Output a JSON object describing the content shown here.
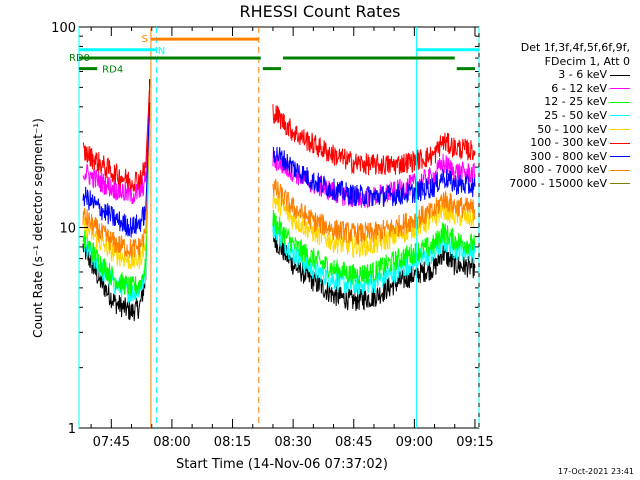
{
  "chart_data": {
    "type": "line",
    "title": "RHESSI Count Rates",
    "xlabel": "Start Time (14-Nov-06 07:37:02)",
    "ylabel": "Count Rate (s⁻¹ detector segment⁻¹)",
    "y_scale": "log",
    "ylim": [
      1,
      100
    ],
    "y_ticks": [
      {
        "value": 1,
        "label": "1"
      },
      {
        "value": 10,
        "label": "10"
      },
      {
        "value": 100,
        "label": "100"
      }
    ],
    "x_range_minutes": [
      37.0,
      136.0
    ],
    "x_ticks": [
      {
        "minute": 45,
        "label": "07:45"
      },
      {
        "minute": 60,
        "label": "08:00"
      },
      {
        "minute": 75,
        "label": "08:15"
      },
      {
        "minute": 90,
        "label": "08:30"
      },
      {
        "minute": 105,
        "label": "08:45"
      },
      {
        "minute": 120,
        "label": "09:00"
      },
      {
        "minute": 135,
        "label": "09:15"
      }
    ],
    "legend_header": [
      "Det 1f,3f,4f,5f,6f,9f,",
      "FDecim 1, Att 0"
    ],
    "series": [
      {
        "name": "3 - 6 keV",
        "color": "#000000",
        "points": [
          [
            38,
            8
          ],
          [
            42,
            5.5
          ],
          [
            46,
            4.2
          ],
          [
            50,
            3.8
          ],
          [
            52,
            4
          ],
          [
            53.5,
            5.5
          ],
          [
            54.5,
            55
          ],
          [
            55,
            0
          ],
          [
            84,
            0
          ],
          [
            85,
            9
          ],
          [
            90,
            6.5
          ],
          [
            95,
            5.4
          ],
          [
            100,
            4.6
          ],
          [
            105,
            4.3
          ],
          [
            110,
            4.5
          ],
          [
            115,
            5.2
          ],
          [
            120,
            5.8
          ],
          [
            125,
            6.3
          ],
          [
            127,
            7.5
          ],
          [
            130,
            6.5
          ],
          [
            135,
            6.3
          ]
        ]
      },
      {
        "name": "6 - 12 keV",
        "color": "#ff00ff",
        "points": [
          [
            38,
            19
          ],
          [
            42,
            17
          ],
          [
            46,
            15.5
          ],
          [
            50,
            14.5
          ],
          [
            52,
            15
          ],
          [
            53.5,
            17
          ],
          [
            54.5,
            47
          ],
          [
            55,
            0
          ],
          [
            84,
            0
          ],
          [
            85,
            22
          ],
          [
            90,
            19
          ],
          [
            95,
            16.5
          ],
          [
            100,
            15
          ],
          [
            105,
            14
          ],
          [
            110,
            14.2
          ],
          [
            115,
            15
          ],
          [
            120,
            16.5
          ],
          [
            125,
            18
          ],
          [
            127,
            21
          ],
          [
            130,
            19
          ],
          [
            135,
            18.5
          ]
        ]
      },
      {
        "name": "12 - 25 keV",
        "color": "#00ff00",
        "points": [
          [
            38,
            9
          ],
          [
            42,
            6.8
          ],
          [
            46,
            5.5
          ],
          [
            50,
            5
          ],
          [
            52,
            5.2
          ],
          [
            53.5,
            6.3
          ],
          [
            54.5,
            40
          ],
          [
            55,
            0
          ],
          [
            84,
            0
          ],
          [
            85,
            11
          ],
          [
            90,
            8.2
          ],
          [
            95,
            7
          ],
          [
            100,
            6.2
          ],
          [
            105,
            5.8
          ],
          [
            110,
            6
          ],
          [
            115,
            6.8
          ],
          [
            120,
            7.5
          ],
          [
            125,
            8.2
          ],
          [
            127,
            9.6
          ],
          [
            130,
            8.6
          ],
          [
            135,
            8.2
          ]
        ]
      },
      {
        "name": "25 - 50 keV",
        "color": "#00ffff",
        "points": [
          [
            38,
            8.2
          ],
          [
            42,
            6.3
          ],
          [
            46,
            5.2
          ],
          [
            50,
            4.7
          ],
          [
            52,
            4.9
          ],
          [
            53.5,
            5.8
          ],
          [
            54.5,
            30
          ],
          [
            55,
            0
          ],
          [
            84,
            0
          ],
          [
            85,
            10
          ],
          [
            90,
            7.4
          ],
          [
            95,
            6.2
          ],
          [
            100,
            5.5
          ],
          [
            105,
            5.1
          ],
          [
            110,
            5.3
          ],
          [
            115,
            6
          ],
          [
            120,
            6.8
          ],
          [
            125,
            7.4
          ],
          [
            127,
            8.6
          ],
          [
            130,
            7.8
          ],
          [
            135,
            7.5
          ]
        ]
      },
      {
        "name": "50 - 100 keV",
        "color": "#ffd700",
        "points": [
          [
            38,
            10.5
          ],
          [
            42,
            8.5
          ],
          [
            46,
            7.4
          ],
          [
            50,
            6.8
          ],
          [
            52,
            7
          ],
          [
            53.5,
            8.3
          ],
          [
            54.5,
            35
          ],
          [
            55,
            0
          ],
          [
            84,
            0
          ],
          [
            85,
            14
          ],
          [
            90,
            11
          ],
          [
            95,
            9.5
          ],
          [
            100,
            8.5
          ],
          [
            105,
            8
          ],
          [
            110,
            8.2
          ],
          [
            115,
            9
          ],
          [
            120,
            10
          ],
          [
            125,
            11
          ],
          [
            127,
            12.5
          ],
          [
            130,
            11.5
          ],
          [
            135,
            11
          ]
        ]
      },
      {
        "name": "100 - 300 keV",
        "color": "#ff0000",
        "points": [
          [
            38,
            24
          ],
          [
            42,
            21
          ],
          [
            46,
            18.5
          ],
          [
            50,
            17
          ],
          [
            52,
            17.5
          ],
          [
            53.5,
            20
          ],
          [
            54.5,
            52
          ],
          [
            55,
            0
          ],
          [
            84,
            0
          ],
          [
            85,
            38
          ],
          [
            90,
            30
          ],
          [
            95,
            26
          ],
          [
            100,
            23
          ],
          [
            105,
            21
          ],
          [
            110,
            20.5
          ],
          [
            115,
            20.5
          ],
          [
            120,
            21.5
          ],
          [
            125,
            23
          ],
          [
            127,
            27
          ],
          [
            130,
            25
          ],
          [
            135,
            24
          ]
        ]
      },
      {
        "name": "300 - 800 keV",
        "color": "#0000ff",
        "points": [
          [
            38,
            14.5
          ],
          [
            42,
            12.5
          ],
          [
            46,
            11
          ],
          [
            50,
            10
          ],
          [
            52,
            10.5
          ],
          [
            53.5,
            12
          ],
          [
            54.5,
            42
          ],
          [
            55,
            0
          ],
          [
            84,
            0
          ],
          [
            85,
            24
          ],
          [
            90,
            20
          ],
          [
            95,
            17
          ],
          [
            100,
            15.5
          ],
          [
            105,
            14.5
          ],
          [
            110,
            14.3
          ],
          [
            115,
            14.5
          ],
          [
            120,
            15
          ],
          [
            125,
            16
          ],
          [
            127,
            18
          ],
          [
            130,
            16.5
          ],
          [
            135,
            16
          ]
        ]
      },
      {
        "name": "800 - 7000 keV",
        "color": "#ff8000",
        "points": [
          [
            38,
            11.5
          ],
          [
            42,
            9.5
          ],
          [
            46,
            8.3
          ],
          [
            50,
            7.8
          ],
          [
            52,
            8
          ],
          [
            53.5,
            9.3
          ],
          [
            54.5,
            38
          ],
          [
            55,
            0
          ],
          [
            84,
            0
          ],
          [
            85,
            16
          ],
          [
            90,
            12.5
          ],
          [
            95,
            10.8
          ],
          [
            100,
            9.8
          ],
          [
            105,
            9.3
          ],
          [
            110,
            9.4
          ],
          [
            115,
            10
          ],
          [
            120,
            11
          ],
          [
            125,
            12
          ],
          [
            127,
            14
          ],
          [
            130,
            12.8
          ],
          [
            135,
            12.3
          ]
        ]
      },
      {
        "name": "7000 - 15000 keV",
        "color": "#808000",
        "points": []
      }
    ],
    "state_bars": [
      {
        "label": "S",
        "color": "#ff8000",
        "value": 87,
        "start_min": 54.8,
        "end_min": 81.5
      },
      {
        "label": "N",
        "color": "#00ffff",
        "value": 77,
        "start_min": 37.0,
        "end_min": 56.0
      },
      {
        "label": "N",
        "color": "#00ffff",
        "value": 77,
        "start_min": 120.5,
        "end_min": 136.0
      },
      {
        "label": "RD0",
        "color": "#008000",
        "value": 70,
        "start_min": 37.0,
        "end_min": 82.0
      },
      {
        "label": "RD0",
        "color": "#008000",
        "value": 70,
        "start_min": 87.5,
        "end_min": 130.0
      },
      {
        "label": "RD4",
        "color": "#008000",
        "value": 62,
        "start_min": 37.0,
        "end_min": 41.5
      },
      {
        "label": "RD4",
        "color": "#008000",
        "value": 62,
        "start_min": 82.5,
        "end_min": 87.0
      },
      {
        "label": "RD4",
        "color": "#008000",
        "value": 62,
        "start_min": 130.5,
        "end_min": 135.0
      }
    ],
    "vertical_markers": [
      {
        "minute": 37.0,
        "color": "#00ffff",
        "dashed": false
      },
      {
        "minute": 54.8,
        "color": "#ff8000",
        "dashed": false
      },
      {
        "minute": 56.2,
        "color": "#00ffff",
        "dashed": true
      },
      {
        "minute": 81.5,
        "color": "#ff8000",
        "dashed": true
      },
      {
        "minute": 120.5,
        "color": "#00ffff",
        "dashed": false
      },
      {
        "minute": 136.0,
        "color": "#00ffff",
        "dashed": true
      }
    ],
    "grid": false,
    "legend_placement": "right"
  },
  "footer_timestamp": "17-Oct-2021 23:41"
}
